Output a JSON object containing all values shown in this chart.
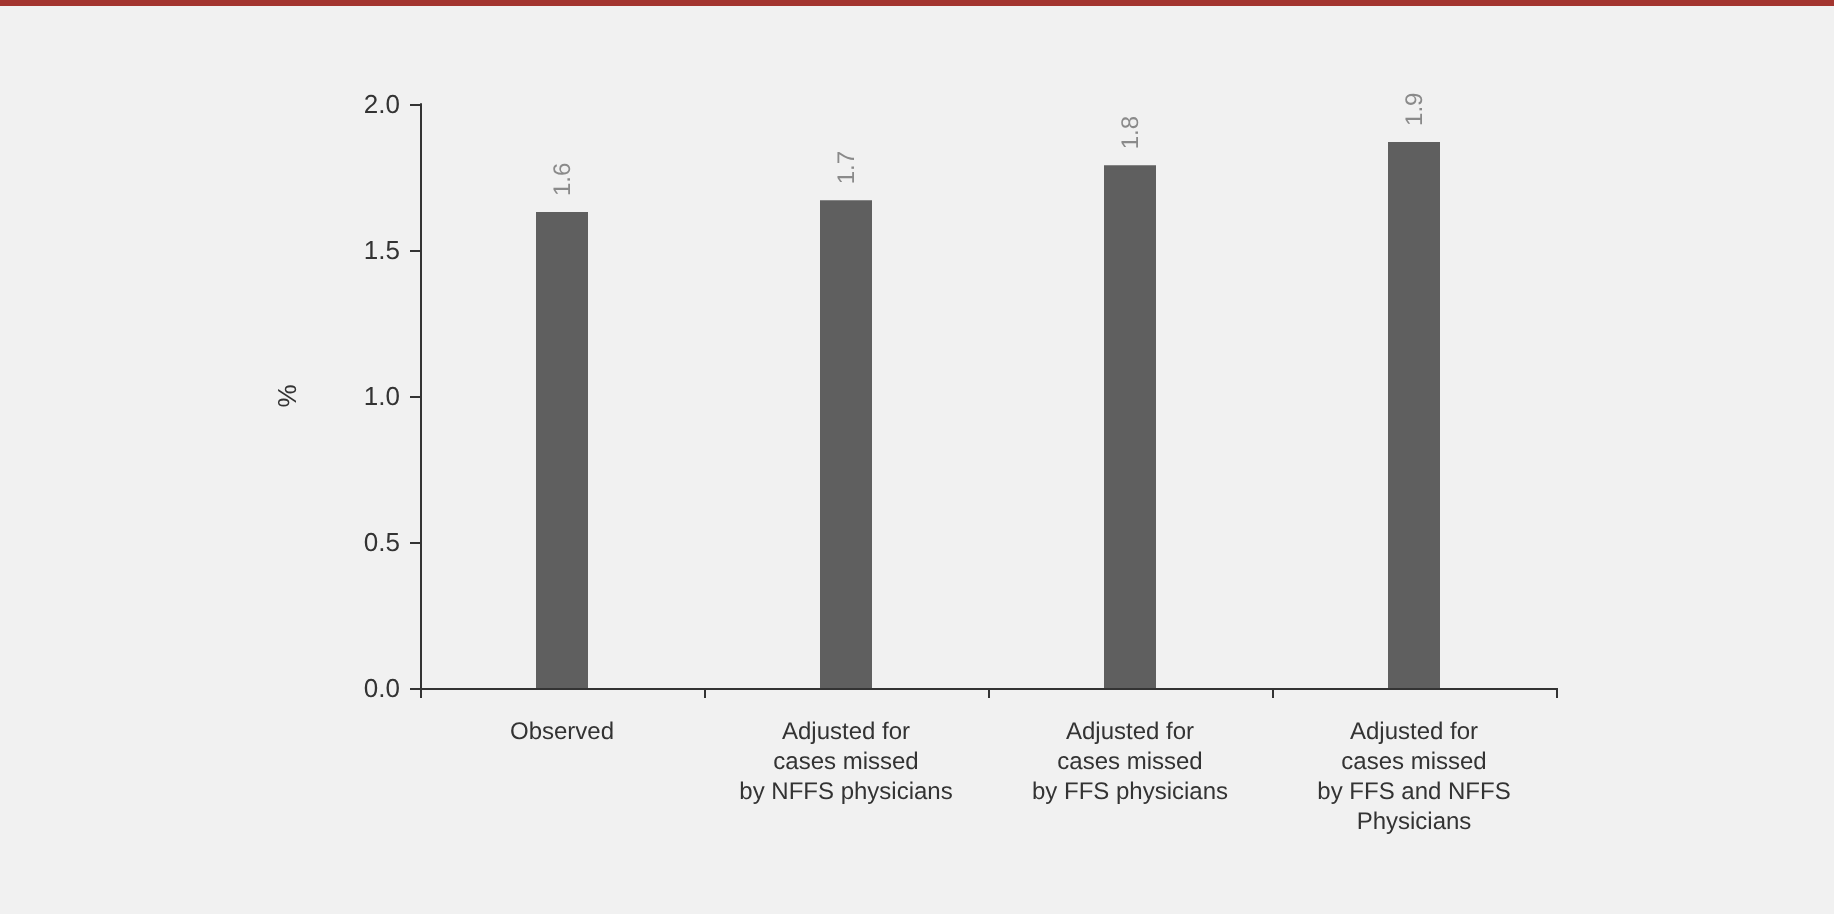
{
  "chart_data": {
    "type": "bar",
    "ylabel": "%",
    "categories": [
      "Observed",
      "Adjusted for\ncases missed\nby NFFS physicians",
      "Adjusted for\ncases missed\nby FFS physicians",
      "Adjusted for\ncases missed\nby FFS and NFFS\nPhysicians"
    ],
    "values": [
      1.63,
      1.67,
      1.79,
      1.87
    ],
    "value_labels": [
      "1.6",
      "1.7",
      "1.8",
      "1.9"
    ],
    "color": "#5f5f5f",
    "ylim": [
      0,
      2
    ],
    "yticks": [
      {
        "value": 0,
        "label": "0.0"
      },
      0.5,
      {
        "value": 1,
        "label": "1.0"
      },
      1.5,
      {
        "value": 2,
        "label": "2.0"
      }
    ],
    "grid": false
  }
}
